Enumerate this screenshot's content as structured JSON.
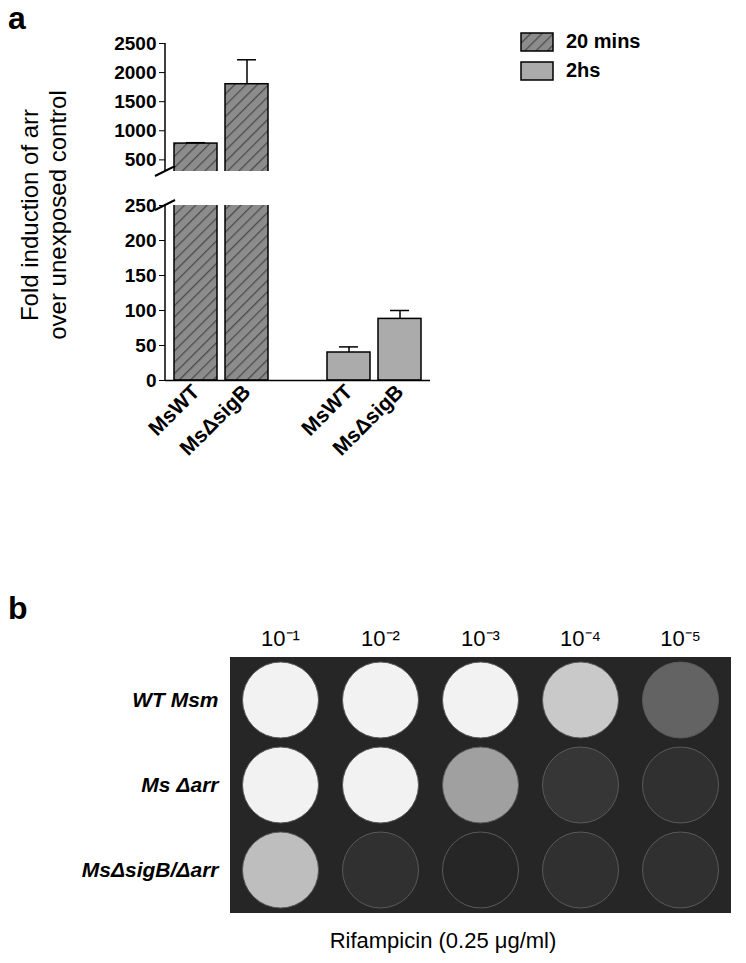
{
  "chart_data": [
    {
      "type": "bar",
      "panel_label": "a",
      "y_label": [
        "Fold induction of arr",
        "over unexposed control"
      ],
      "categories": [
        "MsWT",
        "MsΔsigB"
      ],
      "series": [
        {
          "name": "20 mins",
          "color": "#8c8c8c",
          "values": [
            780,
            1800
          ],
          "errors": [
            15,
            420
          ]
        },
        {
          "name": "2hs",
          "color": "#ababab",
          "values": [
            40,
            88
          ],
          "errors": [
            8,
            12
          ]
        }
      ],
      "ylim": [
        0,
        2500
      ],
      "y_break": [
        250,
        300
      ],
      "yticks": [
        0,
        50,
        100,
        150,
        200,
        250,
        500,
        1000,
        1500,
        2000,
        2500
      ],
      "legend": "top-right",
      "grid": false
    },
    {
      "type": "spot_assay",
      "panel_label": "b",
      "columns": [
        "10⁻¹",
        "10⁻²",
        "10⁻³",
        "10⁻⁴",
        "10⁻⁵"
      ],
      "rows": [
        "WT Msm",
        "Ms Δarr",
        "MsΔsigB/Δarr"
      ],
      "growth": [
        [
          1,
          1,
          1,
          0.8,
          0.3
        ],
        [
          1,
          1,
          0.6,
          0.08,
          0.05
        ],
        [
          0.75,
          0.05,
          0,
          0.05,
          0.05
        ]
      ],
      "growth_range": [
        0,
        1
      ],
      "caption": "Rifampicin (0.25 μg/ml)"
    }
  ]
}
